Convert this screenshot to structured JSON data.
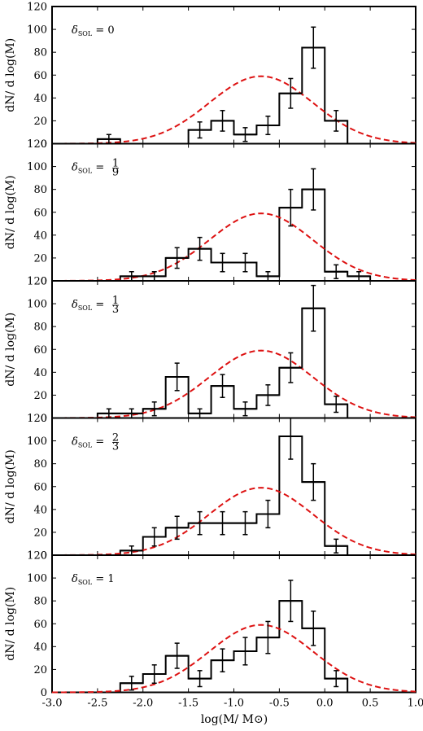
{
  "figure": {
    "xlabel": "log(M/ M⊙)",
    "ylabel": "dN/ d log(M)"
  },
  "chart_data": [
    {
      "type": "histogram",
      "label": "δSOL = 0",
      "label_prefix": "δ",
      "label_sub": "SOL",
      "label_value": "= 0",
      "xlim": [
        -3.0,
        1.0
      ],
      "ylim": [
        0,
        120
      ],
      "xticks": [
        "-3.0",
        "-2.5",
        "-2.0",
        "-1.5",
        "-1.0",
        "-0.5",
        "0.0",
        "0.5",
        "1.0"
      ],
      "yticks": [
        "0",
        "20",
        "40",
        "60",
        "80",
        "100",
        "120"
      ],
      "bins": [
        {
          "x0": -2.5,
          "x1": -2.25,
          "y": 4,
          "err": 4
        },
        {
          "x0": -1.5,
          "x1": -1.25,
          "y": 12,
          "err": 7
        },
        {
          "x0": -1.25,
          "x1": -1.0,
          "y": 20,
          "err": 9
        },
        {
          "x0": -1.0,
          "x1": -0.75,
          "y": 8,
          "err": 6
        },
        {
          "x0": -0.75,
          "x1": -0.5,
          "y": 16,
          "err": 8
        },
        {
          "x0": -0.5,
          "x1": -0.25,
          "y": 44,
          "err": 13
        },
        {
          "x0": -0.25,
          "x1": 0.0,
          "y": 84,
          "err": 18
        },
        {
          "x0": 0.0,
          "x1": 0.25,
          "y": 20,
          "err": 9
        }
      ],
      "model": {
        "style": "dashed",
        "color": "#dd1111",
        "peak_x": -0.7,
        "peak_y": 59,
        "sigma": 0.57
      }
    },
    {
      "type": "histogram",
      "label": "δSOL = 1/9",
      "label_prefix": "δ",
      "label_sub": "SOL",
      "label_value": "= ",
      "label_num": "1",
      "label_den": "9",
      "xlim": [
        -3.0,
        1.0
      ],
      "ylim": [
        0,
        120
      ],
      "xticks": [
        "-3.0",
        "-2.5",
        "-2.0",
        "-1.5",
        "-1.0",
        "-0.5",
        "0.0",
        "0.5",
        "1.0"
      ],
      "yticks": [
        "0",
        "20",
        "40",
        "60",
        "80",
        "100",
        "120"
      ],
      "bins": [
        {
          "x0": -2.25,
          "x1": -2.0,
          "y": 4,
          "err": 4
        },
        {
          "x0": -2.0,
          "x1": -1.75,
          "y": 4,
          "err": 4
        },
        {
          "x0": -1.75,
          "x1": -1.5,
          "y": 20,
          "err": 9
        },
        {
          "x0": -1.5,
          "x1": -1.25,
          "y": 28,
          "err": 10
        },
        {
          "x0": -1.25,
          "x1": -1.0,
          "y": 16,
          "err": 8
        },
        {
          "x0": -1.0,
          "x1": -0.75,
          "y": 16,
          "err": 8
        },
        {
          "x0": -0.75,
          "x1": -0.5,
          "y": 4,
          "err": 4
        },
        {
          "x0": -0.5,
          "x1": -0.25,
          "y": 64,
          "err": 16
        },
        {
          "x0": -0.25,
          "x1": 0.0,
          "y": 80,
          "err": 18
        },
        {
          "x0": 0.0,
          "x1": 0.25,
          "y": 8,
          "err": 6
        },
        {
          "x0": 0.25,
          "x1": 0.5,
          "y": 4,
          "err": 4
        }
      ],
      "model": {
        "style": "dashed",
        "color": "#dd1111",
        "peak_x": -0.7,
        "peak_y": 59,
        "sigma": 0.57
      }
    },
    {
      "type": "histogram",
      "label": "δSOL = 1/3",
      "label_prefix": "δ",
      "label_sub": "SOL",
      "label_value": "= ",
      "label_num": "1",
      "label_den": "3",
      "xlim": [
        -3.0,
        1.0
      ],
      "ylim": [
        0,
        120
      ],
      "xticks": [
        "-3.0",
        "-2.5",
        "-2.0",
        "-1.5",
        "-1.0",
        "-0.5",
        "0.0",
        "0.5",
        "1.0"
      ],
      "yticks": [
        "0",
        "20",
        "40",
        "60",
        "80",
        "100",
        "120"
      ],
      "bins": [
        {
          "x0": -2.5,
          "x1": -2.25,
          "y": 4,
          "err": 4
        },
        {
          "x0": -2.25,
          "x1": -2.0,
          "y": 4,
          "err": 4
        },
        {
          "x0": -2.0,
          "x1": -1.75,
          "y": 8,
          "err": 6
        },
        {
          "x0": -1.75,
          "x1": -1.5,
          "y": 36,
          "err": 12
        },
        {
          "x0": -1.5,
          "x1": -1.25,
          "y": 4,
          "err": 4
        },
        {
          "x0": -1.25,
          "x1": -1.0,
          "y": 28,
          "err": 10
        },
        {
          "x0": -1.0,
          "x1": -0.75,
          "y": 8,
          "err": 6
        },
        {
          "x0": -0.75,
          "x1": -0.5,
          "y": 20,
          "err": 9
        },
        {
          "x0": -0.5,
          "x1": -0.25,
          "y": 44,
          "err": 13
        },
        {
          "x0": -0.25,
          "x1": 0.0,
          "y": 96,
          "err": 20
        },
        {
          "x0": 0.0,
          "x1": 0.25,
          "y": 12,
          "err": 7
        }
      ],
      "model": {
        "style": "dashed",
        "color": "#dd1111",
        "peak_x": -0.7,
        "peak_y": 59,
        "sigma": 0.57
      }
    },
    {
      "type": "histogram",
      "label": "δSOL = 2/3",
      "label_prefix": "δ",
      "label_sub": "SOL",
      "label_value": "= ",
      "label_num": "2",
      "label_den": "3",
      "xlim": [
        -3.0,
        1.0
      ],
      "ylim": [
        0,
        120
      ],
      "xticks": [
        "-3.0",
        "-2.5",
        "-2.0",
        "-1.5",
        "-1.0",
        "-0.5",
        "0.0",
        "0.5",
        "1.0"
      ],
      "yticks": [
        "0",
        "20",
        "40",
        "60",
        "80",
        "100",
        "120"
      ],
      "bins": [
        {
          "x0": -2.25,
          "x1": -2.0,
          "y": 4,
          "err": 4
        },
        {
          "x0": -2.0,
          "x1": -1.75,
          "y": 16,
          "err": 8
        },
        {
          "x0": -1.75,
          "x1": -1.5,
          "y": 24,
          "err": 10
        },
        {
          "x0": -1.5,
          "x1": -1.25,
          "y": 28,
          "err": 10
        },
        {
          "x0": -1.25,
          "x1": -1.0,
          "y": 28,
          "err": 10
        },
        {
          "x0": -1.0,
          "x1": -0.75,
          "y": 28,
          "err": 10
        },
        {
          "x0": -0.75,
          "x1": -0.5,
          "y": 36,
          "err": 12
        },
        {
          "x0": -0.5,
          "x1": -0.25,
          "y": 104,
          "err": 20
        },
        {
          "x0": -0.25,
          "x1": 0.0,
          "y": 64,
          "err": 16
        },
        {
          "x0": 0.0,
          "x1": 0.25,
          "y": 8,
          "err": 6
        }
      ],
      "model": {
        "style": "dashed",
        "color": "#dd1111",
        "peak_x": -0.7,
        "peak_y": 59,
        "sigma": 0.57
      }
    },
    {
      "type": "histogram",
      "label": "δSOL = 1",
      "label_prefix": "δ",
      "label_sub": "SOL",
      "label_value": "= 1",
      "xlim": [
        -3.0,
        1.0
      ],
      "ylim": [
        0,
        120
      ],
      "xticks": [
        "-3.0",
        "-2.5",
        "-2.0",
        "-1.5",
        "-1.0",
        "-0.5",
        "0.0",
        "0.5",
        "1.0"
      ],
      "yticks": [
        "0",
        "20",
        "40",
        "60",
        "80",
        "100",
        "120"
      ],
      "bins": [
        {
          "x0": -2.25,
          "x1": -2.0,
          "y": 8,
          "err": 6
        },
        {
          "x0": -2.0,
          "x1": -1.75,
          "y": 16,
          "err": 8
        },
        {
          "x0": -1.75,
          "x1": -1.5,
          "y": 32,
          "err": 11
        },
        {
          "x0": -1.5,
          "x1": -1.25,
          "y": 12,
          "err": 7
        },
        {
          "x0": -1.25,
          "x1": -1.0,
          "y": 28,
          "err": 10
        },
        {
          "x0": -1.0,
          "x1": -0.75,
          "y": 36,
          "err": 12
        },
        {
          "x0": -0.75,
          "x1": -0.5,
          "y": 48,
          "err": 14
        },
        {
          "x0": -0.5,
          "x1": -0.25,
          "y": 80,
          "err": 18
        },
        {
          "x0": -0.25,
          "x1": 0.0,
          "y": 56,
          "err": 15
        },
        {
          "x0": 0.0,
          "x1": 0.25,
          "y": 12,
          "err": 7
        }
      ],
      "model": {
        "style": "dashed",
        "color": "#dd1111",
        "peak_x": -0.7,
        "peak_y": 59,
        "sigma": 0.57
      }
    }
  ]
}
